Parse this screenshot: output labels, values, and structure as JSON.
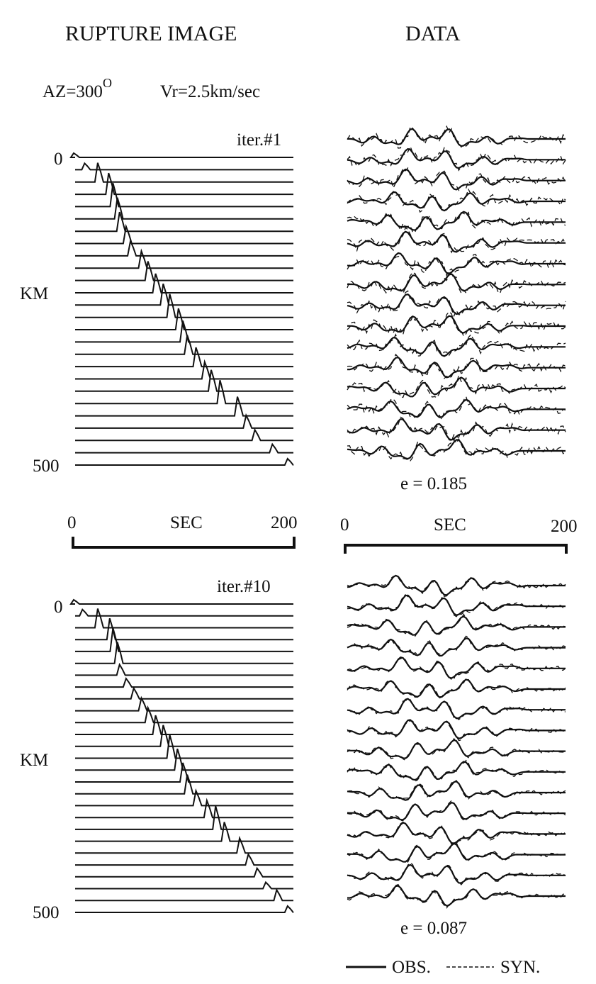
{
  "headers": {
    "left_title": "RUPTURE IMAGE",
    "right_title": "DATA",
    "az_label": "AZ=300",
    "az_sup": "O",
    "vr_label": "Vr=2.5km/sec"
  },
  "panels": [
    {
      "iteration_label": "iter.#1",
      "km_label": "KM",
      "y_top_label": "0",
      "y_bottom_label": "500",
      "error_label": "e = 0.185"
    },
    {
      "iteration_label": "iter.#10",
      "km_label": "KM",
      "y_top_label": "0",
      "y_bottom_label": "500",
      "error_label": "e = 0.087"
    }
  ],
  "time_axis": {
    "left": {
      "start": "0",
      "label": "SEC",
      "end": "200"
    },
    "right": {
      "start": "0",
      "label": "SEC",
      "end": "200"
    }
  },
  "legend": {
    "obs": "OBS.",
    "syn": "SYN."
  },
  "chart_data": [
    {
      "type": "line",
      "title": "iter.#1",
      "xlabel": "SEC",
      "ylabel": "KM",
      "xlim": [
        0,
        200
      ],
      "ylim": [
        0,
        500
      ],
      "traces": 26,
      "peak_time_sec": [
        0,
        10,
        22,
        32,
        36,
        40,
        42,
        48,
        52,
        62,
        68,
        75,
        82,
        88,
        96,
        100,
        104,
        112,
        120,
        126,
        134,
        150,
        158,
        166,
        182,
        196
      ],
      "peak_amplitude": [
        0.2,
        0.3,
        0.9,
        1.0,
        1.1,
        1.0,
        0.9,
        0.8,
        0.7,
        0.8,
        0.9,
        0.9,
        1.0,
        1.1,
        1.0,
        1.0,
        0.9,
        0.9,
        0.8,
        1.0,
        1.1,
        0.9,
        0.6,
        0.5,
        0.4,
        0.3
      ]
    },
    {
      "type": "line",
      "title": "iter.#10",
      "xlabel": "SEC",
      "ylabel": "KM",
      "xlim": [
        0,
        200
      ],
      "ylim": [
        0,
        500
      ],
      "traces": 27,
      "peak_time_sec": [
        0,
        8,
        22,
        33,
        36,
        40,
        42,
        48,
        55,
        62,
        68,
        75,
        82,
        88,
        95,
        100,
        104,
        112,
        122,
        130,
        138,
        152,
        160,
        168,
        176,
        186,
        196
      ],
      "peak_amplitude": [
        0.2,
        0.3,
        0.9,
        1.0,
        1.1,
        1.0,
        0.5,
        0.4,
        0.5,
        0.6,
        0.7,
        0.9,
        1.0,
        1.1,
        1.0,
        0.9,
        0.9,
        0.7,
        0.8,
        1.1,
        0.9,
        0.7,
        0.5,
        0.4,
        0.3,
        0.5,
        0.3
      ]
    },
    {
      "type": "line",
      "title": "DATA",
      "xlabel": "SEC",
      "xlim": [
        0,
        200
      ],
      "traces": 16,
      "error": 0.185,
      "series": [
        {
          "name": "OBS."
        },
        {
          "name": "SYN."
        }
      ]
    },
    {
      "type": "line",
      "title": "DATA",
      "xlabel": "SEC",
      "xlim": [
        0,
        200
      ],
      "traces": 16,
      "error": 0.087,
      "series": [
        {
          "name": "OBS."
        },
        {
          "name": "SYN."
        }
      ]
    }
  ]
}
